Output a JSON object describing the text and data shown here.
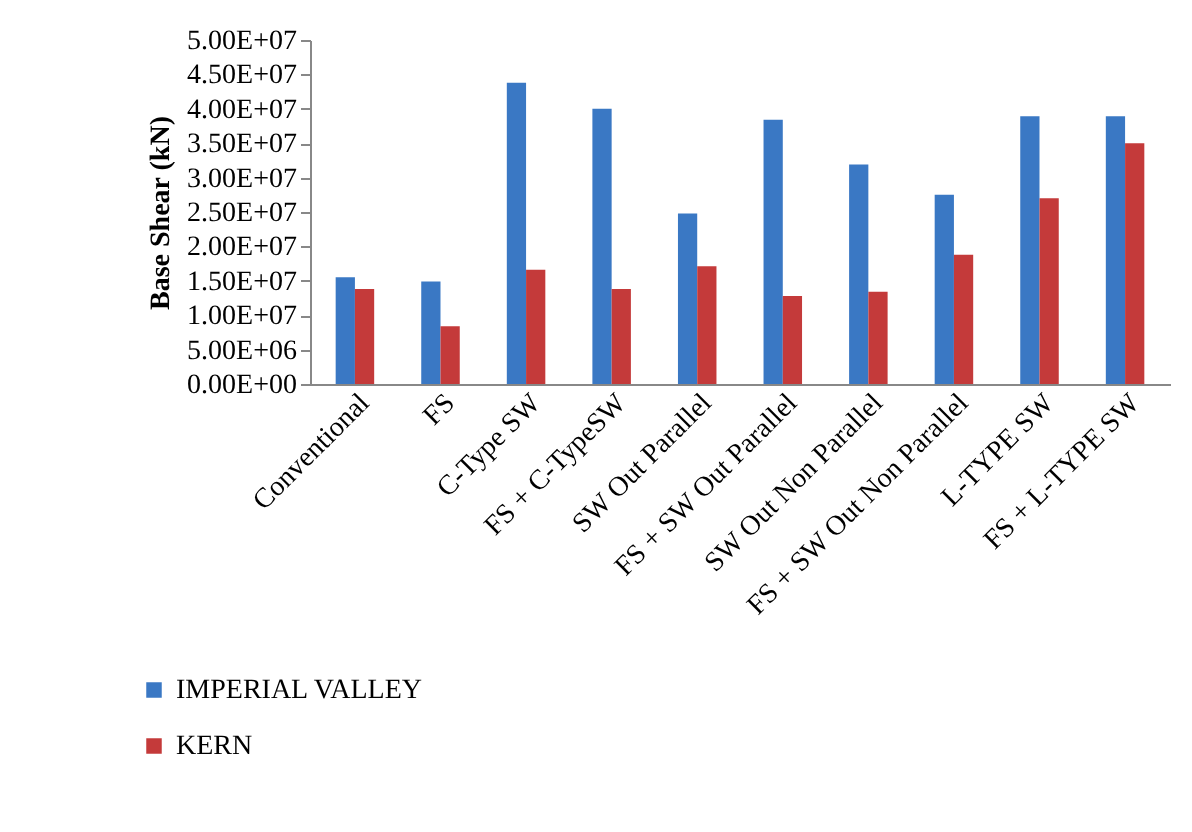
{
  "chart_data": {
    "type": "bar",
    "ylabel": "Base Shear (kN)",
    "categories": [
      "Conventional",
      "FS",
      "C-Type SW",
      "FS + C-TypeSW",
      "SW Out Parallel",
      "FS + SW Out Parallel",
      "SW Out Non Parallel",
      "FS + SW Out Non Parallel",
      "L-TYPE SW",
      "FS + L-TYPE  SW"
    ],
    "series": [
      {
        "name": "IMPERIAL VALLEY",
        "color": "#3a78c4",
        "values": [
          15500000,
          14900000,
          43800000,
          40000000,
          24800000,
          38400000,
          31900000,
          27500000,
          38900000,
          38900000
        ]
      },
      {
        "name": "KERN",
        "color": "#c43a3a",
        "values": [
          13800000,
          8400000,
          16600000,
          13800000,
          17100000,
          12800000,
          13400000,
          18800000,
          27000000,
          35000000
        ]
      }
    ],
    "ylim": [
      0,
      50000000
    ],
    "yticks": [
      {
        "value": 0,
        "label": "0.00E+00"
      },
      {
        "value": 5000000,
        "label": "5.00E+06"
      },
      {
        "value": 10000000,
        "label": "1.00E+07"
      },
      {
        "value": 15000000,
        "label": "1.50E+07"
      },
      {
        "value": 20000000,
        "label": "2.00E+07"
      },
      {
        "value": 25000000,
        "label": "2.50E+07"
      },
      {
        "value": 30000000,
        "label": "3.00E+07"
      },
      {
        "value": 35000000,
        "label": "3.50E+07"
      },
      {
        "value": 40000000,
        "label": "4.00E+07"
      },
      {
        "value": 45000000,
        "label": "4.50E+07"
      },
      {
        "value": 50000000,
        "label": "5.00E+07"
      }
    ],
    "grid": false,
    "legend": "bottom left"
  }
}
